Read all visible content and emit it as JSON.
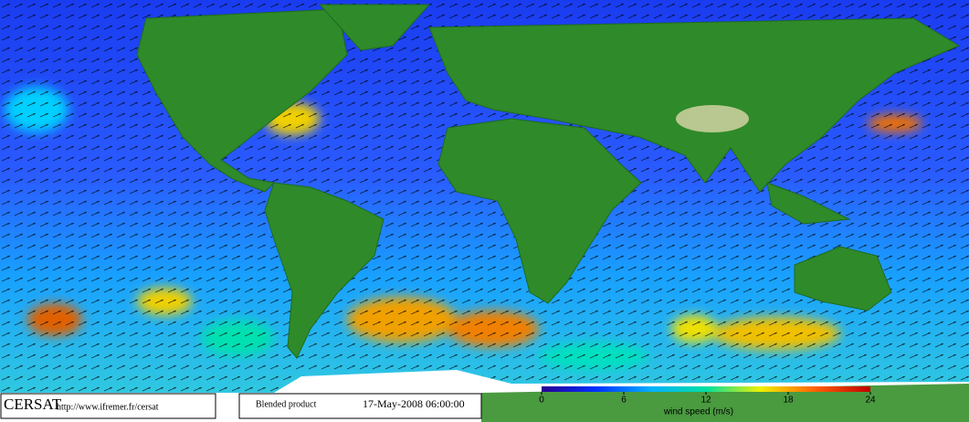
{
  "footer": {
    "logo": "CERSAT",
    "url": "http://www.ifremer.fr/cersat",
    "product": "Blended product",
    "date": "17-May-2008 06:00:00"
  },
  "colorbar": {
    "label": "wind speed (m/s)",
    "range": [
      0,
      24
    ],
    "ticks": [
      0,
      6,
      12,
      18,
      24
    ],
    "colors": [
      "#2a0090",
      "#0030ff",
      "#00b0ff",
      "#00e0a0",
      "#f0f000",
      "#ff6000",
      "#c00000"
    ]
  }
}
